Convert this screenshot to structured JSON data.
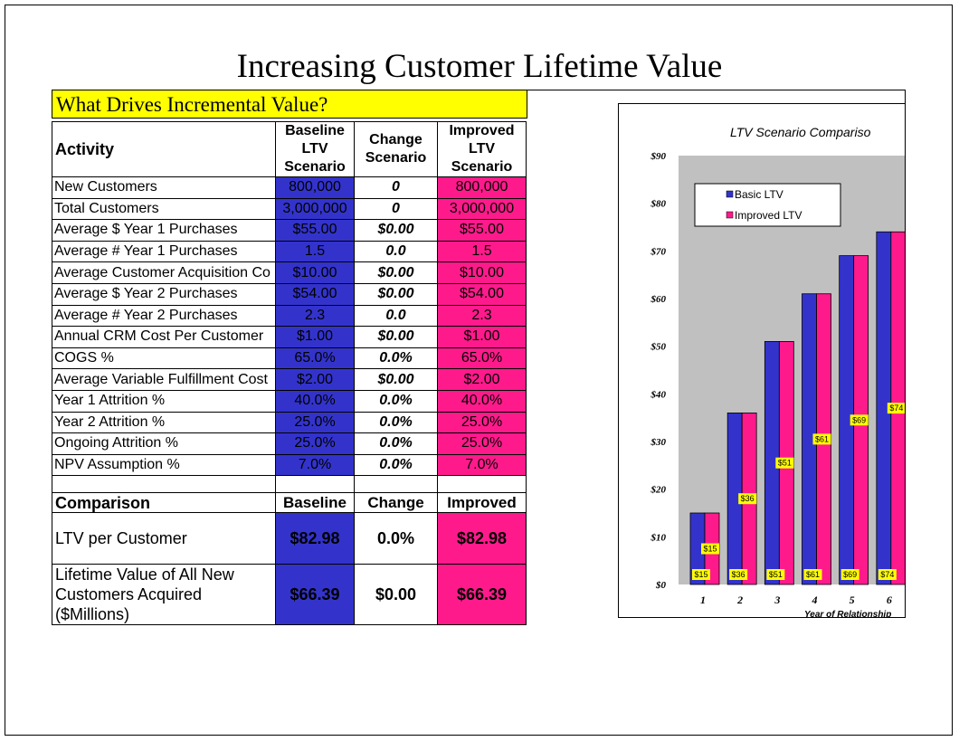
{
  "title": "Increasing Customer Lifetime Value",
  "drivers_header": "What Drives Incremental Value?",
  "table": {
    "activity_label": "Activity",
    "baseline_header": "Baseline LTV Scenario",
    "change_header": "Change Scenario",
    "improved_header": "Improved LTV Scenario",
    "rows": [
      {
        "label": "New Customers",
        "baseline": "800,000",
        "change": "0",
        "improved": "800,000"
      },
      {
        "label": "Total Customers",
        "baseline": "3,000,000",
        "change": "0",
        "improved": "3,000,000"
      },
      {
        "label": "Average $ Year 1 Purchases",
        "baseline": "$55.00",
        "change": "$0.00",
        "improved": "$55.00"
      },
      {
        "label": "Average # Year 1 Purchases",
        "baseline": "1.5",
        "change": "0.0",
        "improved": "1.5"
      },
      {
        "label": "Average Customer Acquisition Co",
        "baseline": "$10.00",
        "change": "$0.00",
        "improved": "$10.00"
      },
      {
        "label": "Average $ Year 2 Purchases",
        "baseline": "$54.00",
        "change": "$0.00",
        "improved": "$54.00"
      },
      {
        "label": "Average # Year 2 Purchases",
        "baseline": "2.3",
        "change": "0.0",
        "improved": "2.3"
      },
      {
        "label": "Annual CRM Cost Per Customer",
        "baseline": "$1.00",
        "change": "$0.00",
        "improved": "$1.00"
      },
      {
        "label": "COGS %",
        "baseline": "65.0%",
        "change": "0.0%",
        "improved": "65.0%"
      },
      {
        "label": "Average Variable Fulfillment Cost",
        "baseline": "$2.00",
        "change": "$0.00",
        "improved": "$2.00"
      },
      {
        "label": "Year 1 Attrition %",
        "baseline": "40.0%",
        "change": "0.0%",
        "improved": "40.0%"
      },
      {
        "label": "Year 2 Attrition %",
        "baseline": "25.0%",
        "change": "0.0%",
        "improved": "25.0%"
      },
      {
        "label": "Ongoing Attrition %",
        "baseline": "25.0%",
        "change": "0.0%",
        "improved": "25.0%"
      },
      {
        "label": "NPV Assumption %",
        "baseline": "7.0%",
        "change": "0.0%",
        "improved": "7.0%"
      }
    ],
    "comparison": {
      "label": "Comparison",
      "baseline_header": "Baseline",
      "change_header": "Change",
      "improved_header": "Improved",
      "ltv": {
        "label": "LTV per Customer",
        "baseline": "$82.98",
        "change": "0.0%",
        "improved": "$82.98"
      },
      "lifetime": {
        "label": "Lifetime Value of All New Customers Acquired ($Millions)",
        "baseline": "$66.39",
        "change": "$0.00",
        "improved": "$66.39"
      }
    }
  },
  "colors": {
    "baseline": "#3333cc",
    "improved": "#ff1a8c",
    "header_highlight": "#ffff00",
    "plot_bg": "#c0c0c0",
    "label_bg": "#ffff00"
  },
  "chart_data": {
    "type": "bar",
    "title": "LTV Scenario Compariso",
    "xlabel": "Year of Relationship",
    "ylabel": "",
    "categories": [
      "1",
      "2",
      "3",
      "4",
      "5",
      "6"
    ],
    "y_ticks": [
      "$0",
      "$10",
      "$20",
      "$30",
      "$40",
      "$50",
      "$60",
      "$70",
      "$80",
      "$90"
    ],
    "ylim": [
      0,
      90
    ],
    "grid": false,
    "legend_position": "top-left",
    "series": [
      {
        "name": "Basic LTV",
        "values": [
          15,
          36,
          51,
          61,
          69,
          74
        ],
        "labels": [
          "$15",
          "$36",
          "$51",
          "$61",
          "$69",
          "$74"
        ]
      },
      {
        "name": "Improved LTV",
        "values": [
          15,
          36,
          51,
          61,
          69,
          74
        ],
        "labels": [
          "$15",
          "$36",
          "$51",
          "$61",
          "$69",
          "$74"
        ]
      }
    ]
  }
}
